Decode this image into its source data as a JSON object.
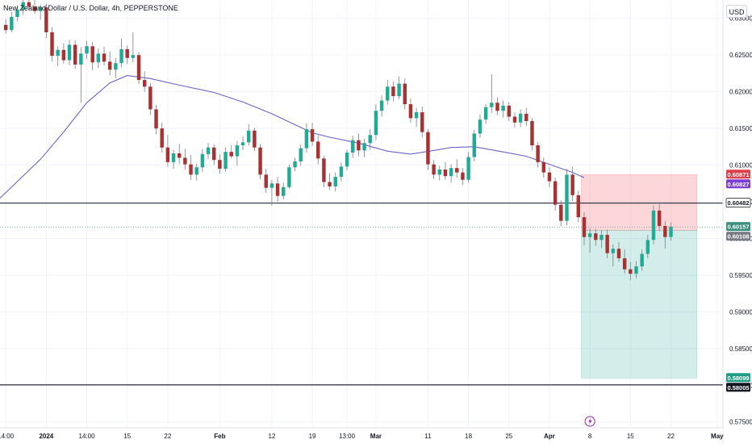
{
  "chart_data": {
    "type": "candlestick",
    "title": "New Zealand Dollar / U.S. Dollar, 4h, PEPPERSTONE",
    "currency": "USD",
    "y_ticks": [
      "0.63000",
      "0.62500",
      "0.62000",
      "0.61500",
      "0.61000",
      "0.60500",
      "0.60000",
      "0.59500",
      "0.59000",
      "0.58500",
      "0.58000",
      "0.57500"
    ],
    "y_tick_values": [
      0.63,
      0.625,
      0.62,
      0.615,
      0.61,
      0.605,
      0.6,
      0.595,
      0.59,
      0.585,
      0.58,
      0.575
    ],
    "ylim": [
      0.5742,
      0.6325
    ],
    "x_ticks": [
      "14:00",
      "2024",
      "14:00",
      "15",
      "22",
      "Feb",
      "12",
      "19",
      "13:00",
      "Mar",
      "11",
      "18",
      "25",
      "Apr",
      "8",
      "15",
      "22",
      "May"
    ],
    "x_tick_index": [
      0,
      7,
      14,
      21,
      28,
      37,
      46,
      53,
      59,
      64,
      73,
      80,
      87,
      94,
      101,
      108,
      115,
      123
    ],
    "xlim_index": [
      -1,
      124
    ],
    "horizontal_lines": [
      {
        "price": 0.60482,
        "label": "0.60482",
        "color": "#131722"
      },
      {
        "price": 0.58005,
        "label": "0.58005",
        "color": "#131722"
      }
    ],
    "position_box": {
      "start_index": 99.5,
      "end_index": 119.5,
      "entry": 0.60108,
      "stop": 0.60871,
      "target": 0.58099,
      "stop_color": "#f7525f",
      "target_color": "#22ab94"
    },
    "price_labels": [
      {
        "label": "0.60871",
        "price": 0.60871,
        "bg": "#e03e4a",
        "fg": "#ffffff"
      },
      {
        "label": "0.60827",
        "price": 0.60827,
        "bg": "#7b3fd1",
        "fg": "#ffffff"
      },
      {
        "label": "0.60482",
        "price": 0.60482,
        "bg": "#ffffff",
        "fg": "#131722"
      },
      {
        "label": "0.60157",
        "price": 0.60157,
        "bg": "#3a8f7e",
        "fg": "#ffffff"
      },
      {
        "label": "0.60108",
        "price": 0.60108,
        "bg": "#787b86",
        "fg": "#ffffff"
      },
      {
        "label": "0.58099",
        "price": 0.58099,
        "bg": "#1f9e85",
        "fg": "#ffffff"
      },
      {
        "label": "0.58005",
        "price": 0.58005,
        "bg": "#131722",
        "fg": "#ffffff"
      }
    ],
    "moving_average": {
      "color": "#6d63c9",
      "points": [
        [
          -1,
          0.6055
        ],
        [
          6,
          0.6108
        ],
        [
          10,
          0.6145
        ],
        [
          14,
          0.6185
        ],
        [
          18,
          0.6212
        ],
        [
          21,
          0.6222
        ],
        [
          25,
          0.6218
        ],
        [
          30,
          0.6209
        ],
        [
          36,
          0.6199
        ],
        [
          41,
          0.6186
        ],
        [
          46,
          0.617
        ],
        [
          50,
          0.6155
        ],
        [
          53,
          0.6144
        ],
        [
          56,
          0.6138
        ],
        [
          61,
          0.613
        ],
        [
          66,
          0.6119
        ],
        [
          70,
          0.6115
        ],
        [
          74,
          0.612
        ],
        [
          77,
          0.6124
        ],
        [
          81,
          0.6125
        ],
        [
          86,
          0.6118
        ],
        [
          90,
          0.6112
        ],
        [
          94,
          0.6101
        ],
        [
          98,
          0.609
        ],
        [
          100,
          0.6083
        ]
      ]
    },
    "candles": {
      "fields": [
        "open",
        "high",
        "low",
        "close"
      ],
      "colors": {
        "up": "#22ab94",
        "down": "#a83232",
        "wick": "#7a7d85"
      },
      "data": [
        [
          0.6291,
          0.6299,
          0.6279,
          0.6284
        ],
        [
          0.6284,
          0.6309,
          0.6281,
          0.6302
        ],
        [
          0.6302,
          0.6318,
          0.6296,
          0.6312
        ],
        [
          0.6312,
          0.6329,
          0.6305,
          0.6322
        ],
        [
          0.6322,
          0.633,
          0.6311,
          0.6316
        ],
        [
          0.6316,
          0.6325,
          0.6306,
          0.631
        ],
        [
          0.631,
          0.6319,
          0.6298,
          0.6315
        ],
        [
          0.6315,
          0.632,
          0.6273,
          0.6281
        ],
        [
          0.6281,
          0.6288,
          0.6241,
          0.6249
        ],
        [
          0.6249,
          0.6262,
          0.6235,
          0.6257
        ],
        [
          0.6257,
          0.6266,
          0.6238,
          0.6243
        ],
        [
          0.6243,
          0.6271,
          0.6236,
          0.6264
        ],
        [
          0.6264,
          0.627,
          0.6231,
          0.6237
        ],
        [
          0.6237,
          0.6261,
          0.6185,
          0.6252
        ],
        [
          0.6252,
          0.6269,
          0.6245,
          0.6262
        ],
        [
          0.6262,
          0.6268,
          0.6229,
          0.624
        ],
        [
          0.624,
          0.6259,
          0.6232,
          0.6252
        ],
        [
          0.6252,
          0.6261,
          0.6236,
          0.6241
        ],
        [
          0.6241,
          0.6255,
          0.6222,
          0.623
        ],
        [
          0.623,
          0.6246,
          0.6218,
          0.6239
        ],
        [
          0.6239,
          0.6272,
          0.6233,
          0.6258
        ],
        [
          0.6258,
          0.6263,
          0.6238,
          0.6246
        ],
        [
          0.6246,
          0.6281,
          0.624,
          0.625
        ],
        [
          0.625,
          0.6254,
          0.621,
          0.6216
        ],
        [
          0.6216,
          0.6228,
          0.62,
          0.6207
        ],
        [
          0.6207,
          0.6212,
          0.6168,
          0.6176
        ],
        [
          0.6176,
          0.6182,
          0.6142,
          0.615
        ],
        [
          0.615,
          0.6158,
          0.6117,
          0.6124
        ],
        [
          0.6124,
          0.6141,
          0.6098,
          0.6104
        ],
        [
          0.6104,
          0.6121,
          0.6095,
          0.6116
        ],
        [
          0.6116,
          0.6129,
          0.6102,
          0.611
        ],
        [
          0.611,
          0.6122,
          0.6094,
          0.6101
        ],
        [
          0.6101,
          0.6114,
          0.608,
          0.6087
        ],
        [
          0.6087,
          0.6102,
          0.6079,
          0.6097
        ],
        [
          0.6097,
          0.6122,
          0.6091,
          0.6115
        ],
        [
          0.6115,
          0.613,
          0.6108,
          0.6124
        ],
        [
          0.6124,
          0.6128,
          0.61,
          0.6107
        ],
        [
          0.6107,
          0.6115,
          0.6088,
          0.6095
        ],
        [
          0.6095,
          0.6124,
          0.6091,
          0.6118
        ],
        [
          0.6118,
          0.6127,
          0.6109,
          0.6112
        ],
        [
          0.6112,
          0.6133,
          0.6099,
          0.6127
        ],
        [
          0.6127,
          0.6139,
          0.612,
          0.6131
        ],
        [
          0.6131,
          0.6156,
          0.6127,
          0.6147
        ],
        [
          0.6147,
          0.6151,
          0.6119,
          0.6124
        ],
        [
          0.6124,
          0.6129,
          0.6081,
          0.6087
        ],
        [
          0.6087,
          0.6095,
          0.6062,
          0.6069
        ],
        [
          0.6069,
          0.608,
          0.6045,
          0.6075
        ],
        [
          0.6075,
          0.6084,
          0.605,
          0.6058
        ],
        [
          0.6058,
          0.6076,
          0.6053,
          0.607
        ],
        [
          0.607,
          0.6101,
          0.6068,
          0.6097
        ],
        [
          0.6097,
          0.611,
          0.6092,
          0.6105
        ],
        [
          0.6105,
          0.6128,
          0.6099,
          0.6123
        ],
        [
          0.6123,
          0.6157,
          0.6117,
          0.6149
        ],
        [
          0.6149,
          0.6158,
          0.6126,
          0.6132
        ],
        [
          0.6132,
          0.6141,
          0.6101,
          0.6109
        ],
        [
          0.6109,
          0.6113,
          0.607,
          0.6077
        ],
        [
          0.6077,
          0.6089,
          0.6066,
          0.6071
        ],
        [
          0.6071,
          0.609,
          0.6064,
          0.6084
        ],
        [
          0.6084,
          0.6104,
          0.6078,
          0.6098
        ],
        [
          0.6098,
          0.6121,
          0.6093,
          0.6117
        ],
        [
          0.6117,
          0.614,
          0.611,
          0.6134
        ],
        [
          0.6134,
          0.6143,
          0.6112,
          0.612
        ],
        [
          0.612,
          0.6136,
          0.6111,
          0.613
        ],
        [
          0.613,
          0.6149,
          0.6121,
          0.6141
        ],
        [
          0.6141,
          0.6183,
          0.6134,
          0.6174
        ],
        [
          0.6174,
          0.6195,
          0.6166,
          0.6188
        ],
        [
          0.6188,
          0.6216,
          0.6182,
          0.6207
        ],
        [
          0.6207,
          0.6214,
          0.6187,
          0.6194
        ],
        [
          0.6194,
          0.6221,
          0.619,
          0.6211
        ],
        [
          0.6211,
          0.6218,
          0.6176,
          0.6183
        ],
        [
          0.6183,
          0.6191,
          0.6158,
          0.6164
        ],
        [
          0.6164,
          0.6178,
          0.6152,
          0.6172
        ],
        [
          0.6172,
          0.618,
          0.6138,
          0.6145
        ],
        [
          0.6145,
          0.6149,
          0.6093,
          0.6101
        ],
        [
          0.6101,
          0.6107,
          0.6081,
          0.6087
        ],
        [
          0.6087,
          0.6099,
          0.6079,
          0.6094
        ],
        [
          0.6094,
          0.6104,
          0.608,
          0.6085
        ],
        [
          0.6085,
          0.6101,
          0.6076,
          0.6096
        ],
        [
          0.6096,
          0.6108,
          0.6083,
          0.609
        ],
        [
          0.609,
          0.6096,
          0.6073,
          0.608
        ],
        [
          0.608,
          0.6118,
          0.6076,
          0.6111
        ],
        [
          0.6111,
          0.6148,
          0.6105,
          0.6143
        ],
        [
          0.6143,
          0.6169,
          0.6137,
          0.6162
        ],
        [
          0.6162,
          0.6183,
          0.6156,
          0.6179
        ],
        [
          0.6179,
          0.6224,
          0.6171,
          0.6185
        ],
        [
          0.6185,
          0.6192,
          0.6168,
          0.6174
        ],
        [
          0.6174,
          0.6188,
          0.6165,
          0.6181
        ],
        [
          0.6181,
          0.6186,
          0.616,
          0.6166
        ],
        [
          0.6166,
          0.6172,
          0.6151,
          0.6158
        ],
        [
          0.6158,
          0.6176,
          0.6152,
          0.617
        ],
        [
          0.617,
          0.6178,
          0.6153,
          0.616
        ],
        [
          0.616,
          0.6164,
          0.612,
          0.6127
        ],
        [
          0.6127,
          0.6131,
          0.6097,
          0.6104
        ],
        [
          0.6104,
          0.611,
          0.6083,
          0.609
        ],
        [
          0.609,
          0.6097,
          0.607,
          0.6078
        ],
        [
          0.6078,
          0.6083,
          0.6038,
          0.6046
        ],
        [
          0.6046,
          0.6052,
          0.6017,
          0.6024
        ],
        [
          0.6024,
          0.6095,
          0.6018,
          0.6087
        ],
        [
          0.6087,
          0.6098,
          0.6051,
          0.6059
        ],
        [
          0.6059,
          0.6065,
          0.6022,
          0.6029
        ],
        [
          0.6029,
          0.6036,
          0.5991,
          0.6002
        ],
        [
          0.6002,
          0.6014,
          0.5981,
          0.6007
        ],
        [
          0.6007,
          0.6013,
          0.599,
          0.5998
        ],
        [
          0.5998,
          0.6011,
          0.5987,
          0.6005
        ],
        [
          0.6005,
          0.6012,
          0.5973,
          0.598
        ],
        [
          0.598,
          0.5992,
          0.5962,
          0.5986
        ],
        [
          0.5986,
          0.5995,
          0.5968,
          0.5973
        ],
        [
          0.5973,
          0.5985,
          0.5952,
          0.5958
        ],
        [
          0.5958,
          0.5968,
          0.5943,
          0.5952
        ],
        [
          0.5952,
          0.5969,
          0.5946,
          0.5962
        ],
        [
          0.5962,
          0.5985,
          0.5956,
          0.5979
        ],
        [
          0.5979,
          0.6005,
          0.5973,
          0.5998
        ],
        [
          0.5998,
          0.6045,
          0.5992,
          0.6038
        ],
        [
          0.6038,
          0.6047,
          0.601,
          0.6017
        ],
        [
          0.6017,
          0.6024,
          0.5986,
          0.6002
        ],
        [
          0.6002,
          0.6022,
          0.5997,
          0.6016
        ]
      ]
    }
  }
}
